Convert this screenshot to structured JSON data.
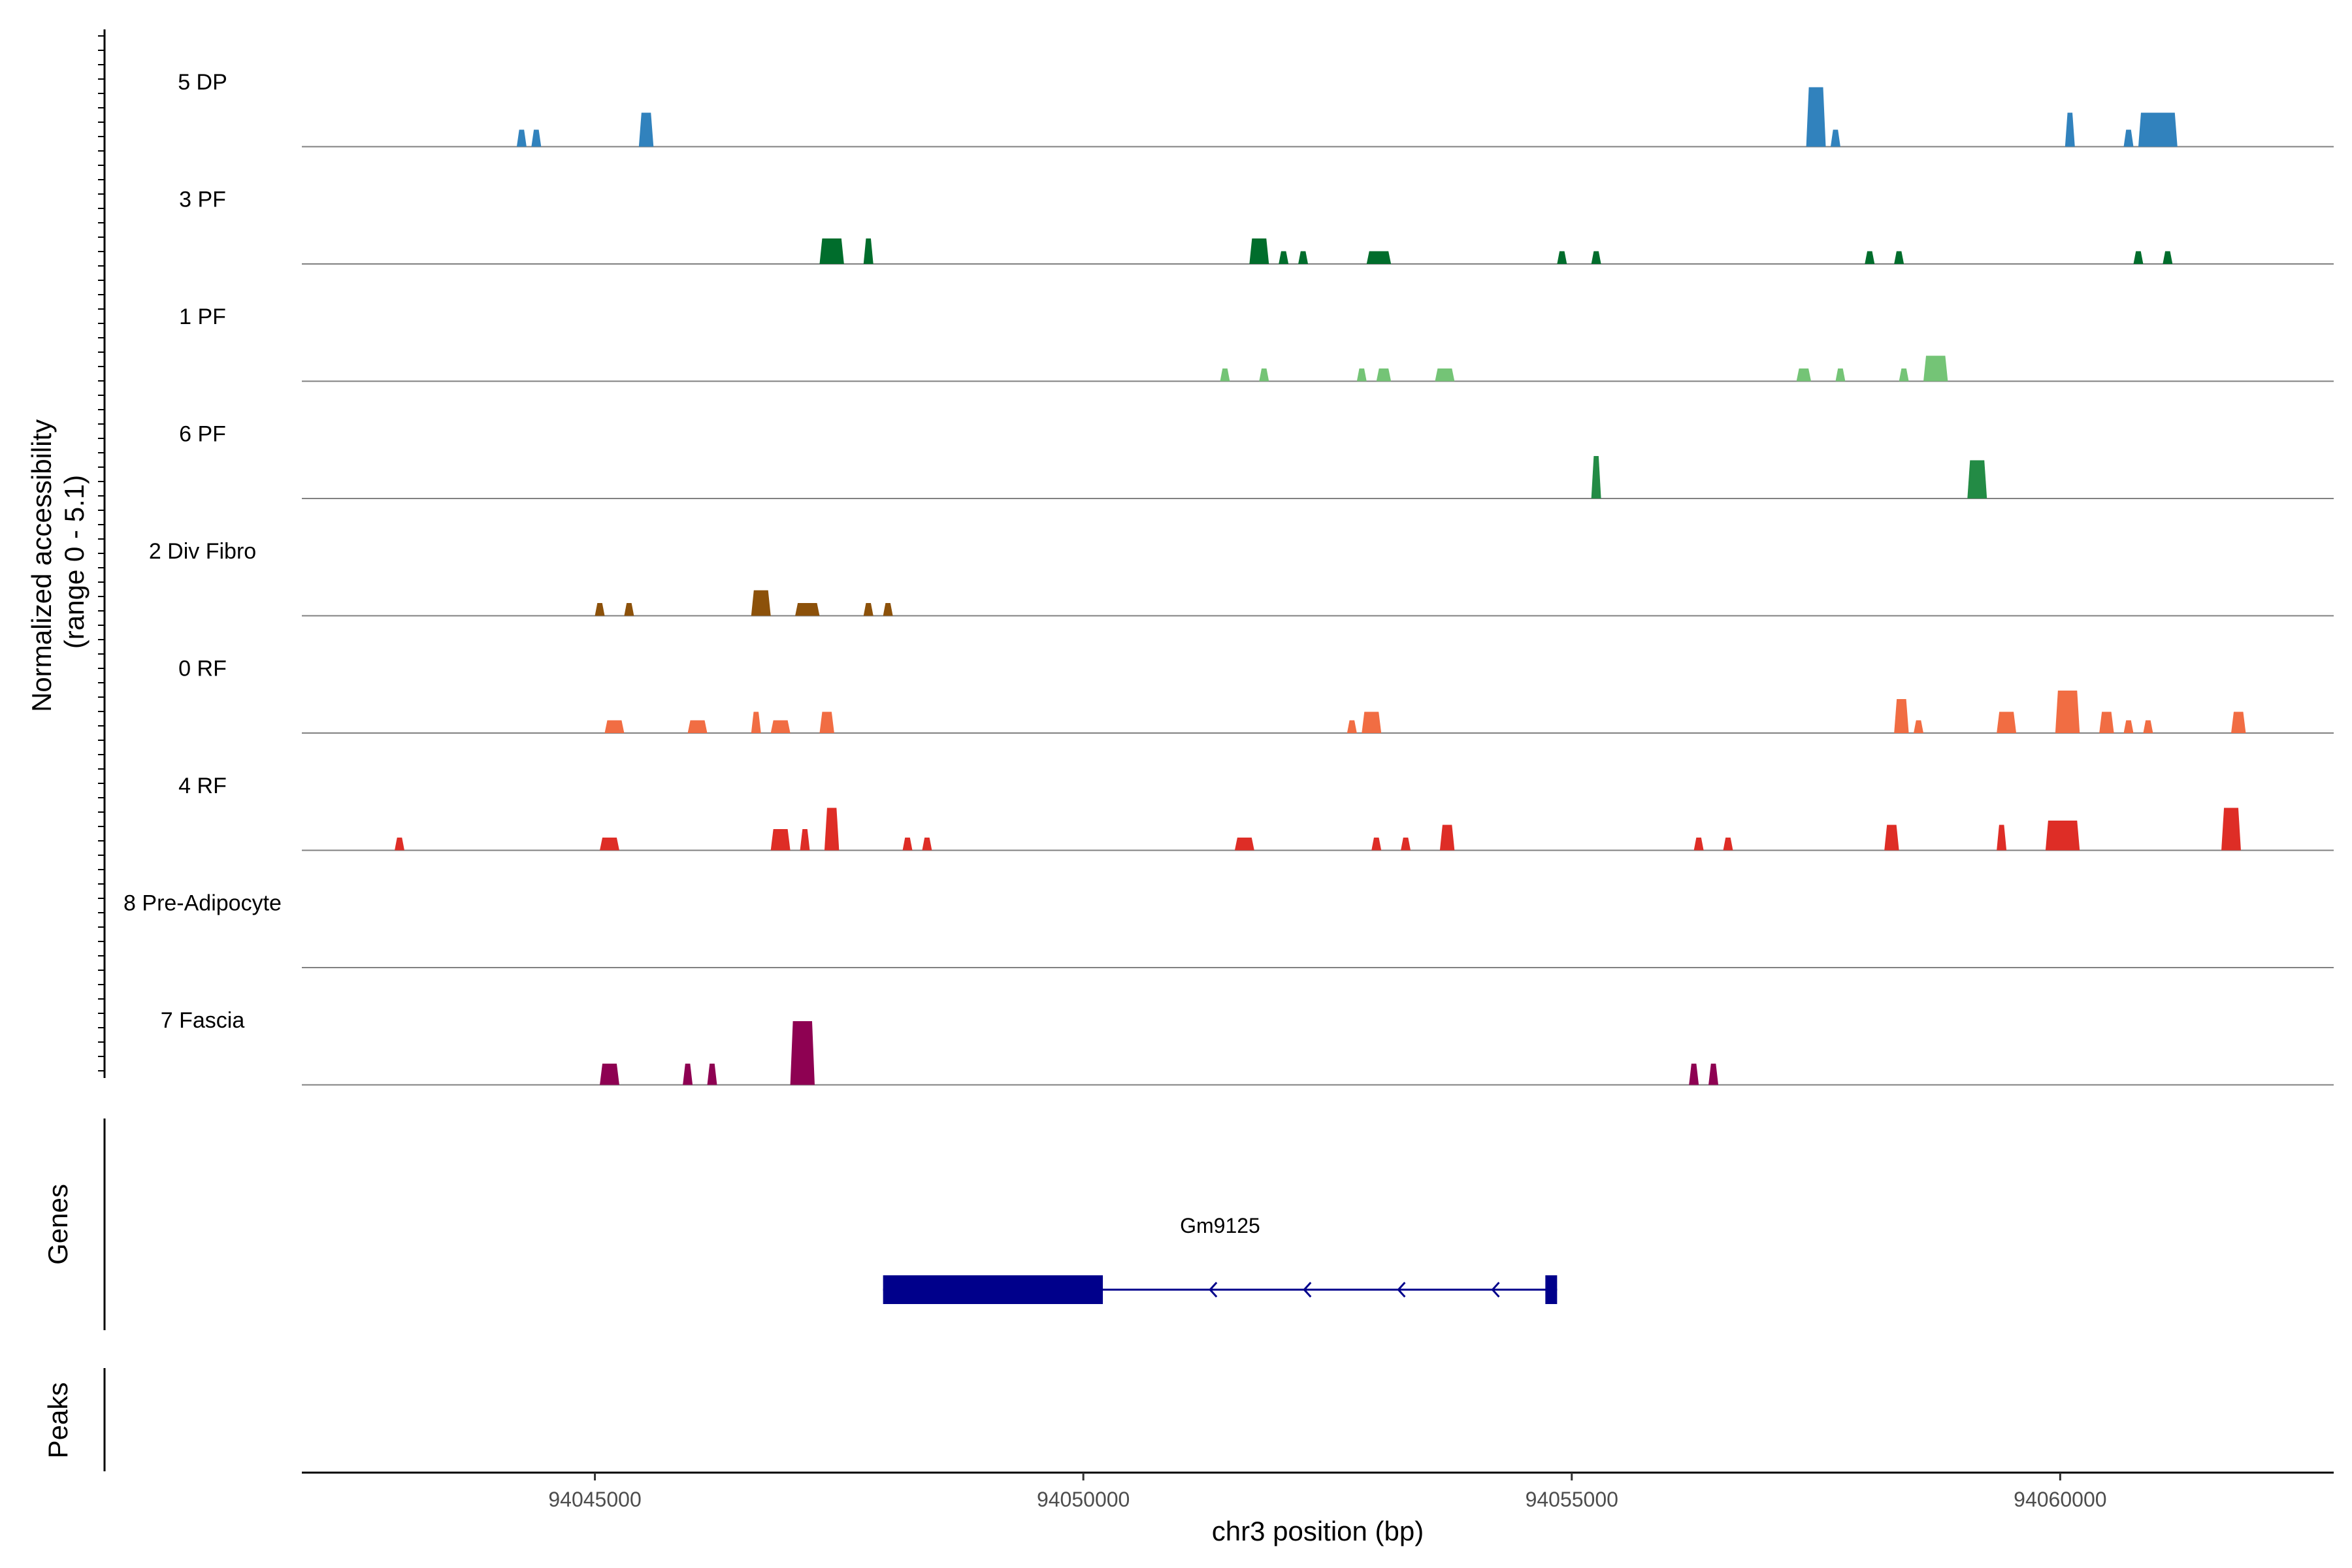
{
  "chart_data": {
    "type": "area",
    "title": "",
    "ylabel": "Normalized accessibility\n(range 0 - 5.1)",
    "ylabel_lines": [
      "Normalized accessibility",
      "(range 0 - 5.1)"
    ],
    "xlabel": "chr3 position (bp)",
    "y_range": [
      0,
      5.1
    ],
    "x_range": [
      94042000,
      94062800
    ],
    "x_ticks": [
      94045000,
      94050000,
      94055000,
      94060000
    ],
    "x_tick_labels": [
      "94045000",
      "94050000",
      "94055000",
      "94060000"
    ],
    "tracks": [
      {
        "name": "5 DP",
        "color": "#3182bd",
        "peaks": [
          [
            94044200,
            94044300,
            2.0
          ],
          [
            94044350,
            94044450,
            2.0
          ],
          [
            94045450,
            94045600,
            4.0
          ],
          [
            94057400,
            94057600,
            7.0
          ],
          [
            94057650,
            94057750,
            2.0
          ],
          [
            94060050,
            94060150,
            4.0
          ],
          [
            94060650,
            94060750,
            2.0
          ],
          [
            94060800,
            94061200,
            4.0
          ]
        ]
      },
      {
        "name": "3 PF",
        "color": "#006d2c",
        "peaks": [
          [
            94047300,
            94047550,
            3.0
          ],
          [
            94047750,
            94047850,
            3.0
          ],
          [
            94051700,
            94051900,
            3.0
          ],
          [
            94052000,
            94052100,
            1.5
          ],
          [
            94052200,
            94052300,
            1.5
          ],
          [
            94052900,
            94053150,
            1.5
          ],
          [
            94054850,
            94054950,
            1.5
          ],
          [
            94055200,
            94055300,
            1.5
          ],
          [
            94058000,
            94058100,
            1.5
          ],
          [
            94058300,
            94058400,
            1.5
          ],
          [
            94060750,
            94060850,
            1.5
          ],
          [
            94061050,
            94061150,
            1.5
          ]
        ]
      },
      {
        "name": "1 PF",
        "color": "#74c476",
        "peaks": [
          [
            94051400,
            94051500,
            1.5
          ],
          [
            94051800,
            94051900,
            1.5
          ],
          [
            94052800,
            94052900,
            1.5
          ],
          [
            94053000,
            94053150,
            1.5
          ],
          [
            94053600,
            94053800,
            1.5
          ],
          [
            94057300,
            94057450,
            1.5
          ],
          [
            94057700,
            94057800,
            1.5
          ],
          [
            94058350,
            94058450,
            1.5
          ],
          [
            94058600,
            94058850,
            3.0
          ]
        ]
      },
      {
        "name": "6 PF",
        "color": "#238b45",
        "peaks": [
          [
            94055200,
            94055300,
            5.0
          ],
          [
            94059050,
            94059250,
            4.5
          ]
        ]
      },
      {
        "name": "2 Div Fibro",
        "color": "#8c510a",
        "peaks": [
          [
            94045000,
            94045100,
            1.5
          ],
          [
            94045300,
            94045400,
            1.5
          ],
          [
            94046600,
            94046800,
            3.0
          ],
          [
            94047050,
            94047300,
            1.5
          ],
          [
            94047750,
            94047850,
            1.5
          ],
          [
            94047950,
            94048050,
            1.5
          ]
        ]
      },
      {
        "name": "0 RF",
        "color": "#f16d43",
        "peaks": [
          [
            94045100,
            94045300,
            1.5
          ],
          [
            94045950,
            94046150,
            1.5
          ],
          [
            94046600,
            94046700,
            2.5
          ],
          [
            94046800,
            94047000,
            1.5
          ],
          [
            94047300,
            94047450,
            2.5
          ],
          [
            94052700,
            94052800,
            1.5
          ],
          [
            94052850,
            94053050,
            2.5
          ],
          [
            94058300,
            94058450,
            4.0
          ],
          [
            94058500,
            94058600,
            1.5
          ],
          [
            94059350,
            94059550,
            2.5
          ],
          [
            94059950,
            94060200,
            5.0
          ],
          [
            94060400,
            94060550,
            2.5
          ],
          [
            94060650,
            94060750,
            1.5
          ],
          [
            94060850,
            94060950,
            1.5
          ],
          [
            94061750,
            94061900,
            2.5
          ]
        ]
      },
      {
        "name": "4 RF",
        "color": "#de2d26",
        "peaks": [
          [
            94042950,
            94043050,
            1.5
          ],
          [
            94045050,
            94045250,
            1.5
          ],
          [
            94046800,
            94047000,
            2.5
          ],
          [
            94047100,
            94047200,
            2.5
          ],
          [
            94047350,
            94047500,
            5.0
          ],
          [
            94048150,
            94048250,
            1.5
          ],
          [
            94048350,
            94048450,
            1.5
          ],
          [
            94051550,
            94051750,
            1.5
          ],
          [
            94052950,
            94053050,
            1.5
          ],
          [
            94053250,
            94053350,
            1.5
          ],
          [
            94053650,
            94053800,
            3.0
          ],
          [
            94056250,
            94056350,
            1.5
          ],
          [
            94056550,
            94056650,
            1.5
          ],
          [
            94058200,
            94058350,
            3.0
          ],
          [
            94059350,
            94059450,
            3.0
          ],
          [
            94059850,
            94060200,
            3.5
          ],
          [
            94061650,
            94061850,
            5.0
          ]
        ]
      },
      {
        "name": "8 Pre-Adipocyte",
        "color": "#4daf4a",
        "peaks": []
      },
      {
        "name": "7 Fascia",
        "color": "#8e0152",
        "peaks": [
          [
            94045050,
            94045250,
            2.5
          ],
          [
            94045900,
            94046000,
            2.5
          ],
          [
            94046150,
            94046250,
            2.5
          ],
          [
            94047000,
            94047250,
            7.5
          ],
          [
            94056200,
            94056300,
            2.5
          ],
          [
            94056400,
            94056500,
            2.5
          ]
        ]
      }
    ]
  },
  "genes_panel": {
    "title": "Genes",
    "gene": {
      "name": "Gm9125",
      "start": 94047950,
      "end": 94054850,
      "thick_start": 94047950,
      "thick_end": 94050200,
      "strand": "-",
      "color": "#00008b"
    }
  },
  "peaks_panel": {
    "title": "Peaks",
    "peaks": []
  }
}
